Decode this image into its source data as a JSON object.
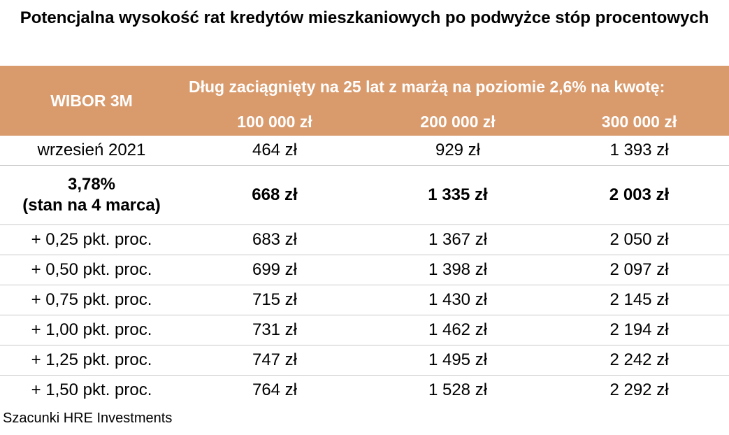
{
  "title": "Potencjalna wysokość rat kredytów mieszkaniowych po podwyżce stóp procentowych",
  "chart_data": {
    "type": "table",
    "row_header": "WIBOR 3M",
    "group_header": "Dług zaciągnięty na 25 lat z marżą na poziomie 2,6% na kwotę:",
    "columns": [
      "100 000 zł",
      "200 000 zł",
      "300 000 zł"
    ],
    "rows": [
      {
        "label": "wrzesień 2021",
        "values": [
          "464 zł",
          "929 zł",
          "1 393 zł"
        ]
      },
      {
        "label": "3,78%\n(stan na 4 marca)",
        "values": [
          "668 zł",
          "1 335 zł",
          "2 003 zł"
        ],
        "bold": true
      },
      {
        "label": "+ 0,25 pkt. proc.",
        "values": [
          "683 zł",
          "1 367 zł",
          "2 050 zł"
        ]
      },
      {
        "label": "+ 0,50 pkt. proc.",
        "values": [
          "699 zł",
          "1 398 zł",
          "2 097 zł"
        ]
      },
      {
        "label": "+ 0,75 pkt. proc.",
        "values": [
          "715 zł",
          "1 430 zł",
          "2 145 zł"
        ]
      },
      {
        "label": "+ 1,00 pkt. proc.",
        "values": [
          "731 zł",
          "1 462 zł",
          "2 194 zł"
        ]
      },
      {
        "label": "+ 1,25 pkt. proc.",
        "values": [
          "747 zł",
          "1 495 zł",
          "2 242 zł"
        ]
      },
      {
        "label": "+ 1,50 pkt. proc.",
        "values": [
          "764 zł",
          "1 528 zł",
          "2 292 zł"
        ]
      }
    ],
    "header_color": "#d99a6c"
  },
  "source": "Szacunki HRE Investments"
}
